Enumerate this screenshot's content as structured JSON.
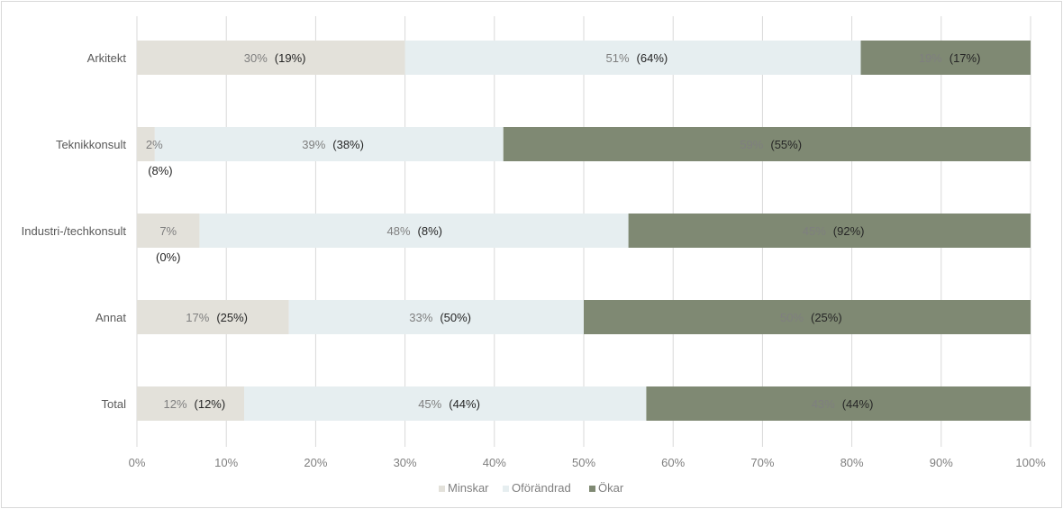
{
  "chart_data": {
    "type": "bar",
    "orientation": "horizontal",
    "stacked": "percent",
    "categories": [
      "Arkitekt",
      "Teknikkonsult",
      "Industri-/techkonsult",
      "Annat",
      "Total"
    ],
    "series": [
      {
        "name": "Minskar",
        "color": "#e3e1da",
        "values": [
          30,
          2,
          7,
          17,
          12
        ],
        "labels": [
          "30%",
          "2%",
          "7%",
          "17%",
          "12%"
        ],
        "comparison_labels": [
          "(19%)",
          "(8%)",
          "(0%)",
          "(25%)",
          "(12%)"
        ]
      },
      {
        "name": "Oförändrad",
        "color": "#e6eef0",
        "values": [
          51,
          39,
          48,
          33,
          45
        ],
        "labels": [
          "51%",
          "39%",
          "48%",
          "33%",
          "45%"
        ],
        "comparison_labels": [
          "(64%)",
          "(38%)",
          "(8%)",
          "(50%)",
          "(44%)"
        ]
      },
      {
        "name": "Ökar",
        "color": "#7f8973",
        "values": [
          19,
          59,
          45,
          50,
          43
        ],
        "labels": [
          "19%",
          "59%",
          "45%",
          "50%",
          "43%"
        ],
        "comparison_labels": [
          "(17%)",
          "(55%)",
          "(92%)",
          "(25%)",
          "(44%)"
        ]
      }
    ],
    "x_ticks": [
      "0%",
      "10%",
      "20%",
      "30%",
      "40%",
      "50%",
      "60%",
      "70%",
      "80%",
      "90%",
      "100%"
    ],
    "xlim": [
      0,
      100
    ],
    "grid": "vertical",
    "legend": "bottom-center"
  }
}
